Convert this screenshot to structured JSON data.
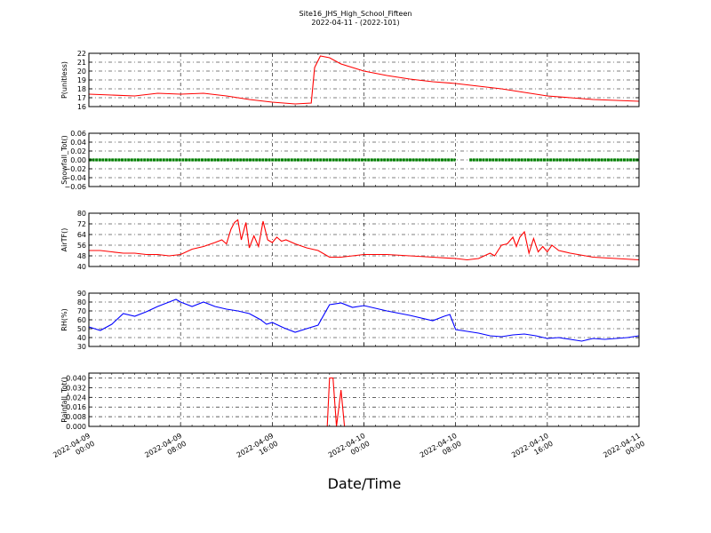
{
  "figure": {
    "title_line1": "Site16_JHS_High_School_Fifteen",
    "title_line2": "2022-04-11 - (2022-101)",
    "xlabel": "Date/Time"
  },
  "chart_data": [
    {
      "type": "line",
      "ylabel": "P(unitless)",
      "ylim": [
        16,
        22
      ],
      "yticks": [
        16,
        17,
        18,
        19,
        20,
        21,
        22
      ],
      "ytick_labels": [
        "16",
        "17",
        "18",
        "19",
        "20",
        "21",
        "22"
      ],
      "color": "#ff0000",
      "marker": "line",
      "grid": true,
      "x_hours": [
        0,
        2,
        4,
        6,
        8,
        10,
        12,
        14,
        16,
        18,
        19.4,
        19.7,
        20.2,
        21,
        22,
        24,
        26,
        28,
        30,
        32,
        34,
        36,
        38,
        40,
        42,
        44,
        46,
        48
      ],
      "y": [
        17.4,
        17.3,
        17.2,
        17.5,
        17.4,
        17.5,
        17.2,
        16.8,
        16.5,
        16.3,
        16.4,
        20.4,
        21.7,
        21.5,
        20.8,
        20.0,
        19.5,
        19.1,
        18.8,
        18.6,
        18.3,
        18.0,
        17.6,
        17.2,
        17.0,
        16.8,
        16.7,
        16.6
      ]
    },
    {
      "type": "scatter",
      "ylabel": "Snowfall_Tot()",
      "ylim": [
        -0.06,
        0.06
      ],
      "yticks": [
        -0.06,
        -0.04,
        -0.02,
        0.0,
        0.02,
        0.04,
        0.06
      ],
      "ytick_labels": [
        "−0.06",
        "−0.04",
        "−0.02",
        "0.00",
        "0.02",
        "0.04",
        "0.06"
      ],
      "color": "#007f00",
      "marker": "dots",
      "grid": true,
      "segments": [
        [
          0,
          32
        ],
        [
          33.2,
          48
        ]
      ],
      "value": 0.0
    },
    {
      "type": "line",
      "ylabel": "AirTF()",
      "ylim": [
        40,
        80
      ],
      "yticks": [
        40,
        48,
        56,
        64,
        72,
        80
      ],
      "ytick_labels": [
        "40",
        "48",
        "56",
        "64",
        "72",
        "80"
      ],
      "color": "#ff0000",
      "marker": "line",
      "grid": true,
      "x_hours": [
        0,
        1,
        2,
        3,
        4,
        5,
        6,
        7,
        8,
        9,
        10,
        11,
        11.6,
        12,
        12.4,
        12.7,
        13,
        13.3,
        13.7,
        14,
        14.4,
        14.8,
        15.2,
        15.6,
        16,
        16.4,
        16.8,
        17.2,
        18,
        19,
        20,
        21,
        22,
        24,
        26,
        28,
        30,
        32,
        33,
        34,
        35,
        35.4,
        36,
        36.5,
        37,
        37.3,
        37.6,
        38,
        38.4,
        38.8,
        39.2,
        39.6,
        40,
        40.4,
        41,
        42,
        44,
        46,
        48
      ],
      "y": [
        52,
        52,
        51,
        50,
        50,
        49,
        49,
        48,
        49,
        53,
        55,
        58,
        60,
        57,
        68,
        73,
        75,
        60,
        73,
        54,
        63,
        55,
        74,
        60,
        58,
        62,
        59,
        60,
        57,
        54,
        52,
        47,
        47,
        49,
        49,
        48,
        47,
        46,
        45,
        46,
        50,
        48,
        56,
        57,
        62,
        55,
        62,
        66,
        50,
        61,
        51,
        55,
        51,
        56,
        52,
        50,
        47,
        46,
        45
      ]
    },
    {
      "type": "line",
      "ylabel": "RH(%)",
      "ylim": [
        30,
        90
      ],
      "yticks": [
        30,
        40,
        50,
        60,
        70,
        80,
        90
      ],
      "ytick_labels": [
        "30",
        "40",
        "50",
        "60",
        "70",
        "80",
        "90"
      ],
      "color": "#0000ff",
      "marker": "line",
      "grid": true,
      "x_hours": [
        0,
        1,
        2,
        3,
        4,
        5,
        6,
        7,
        7.6,
        8,
        9,
        10,
        11,
        12,
        13,
        14,
        15,
        15.5,
        16,
        17,
        18,
        19,
        20,
        21,
        22,
        23,
        24,
        26,
        28,
        30,
        31,
        31.5,
        32,
        33,
        34,
        35,
        36,
        37,
        38,
        39,
        40,
        41,
        42,
        43,
        44,
        45,
        46,
        47,
        48
      ],
      "y": [
        52,
        48,
        55,
        67,
        64,
        69,
        75,
        80,
        83,
        80,
        75,
        80,
        75,
        72,
        70,
        67,
        60,
        55,
        57,
        51,
        46,
        50,
        54,
        77,
        79,
        74,
        76,
        70,
        65,
        59,
        64,
        66,
        49,
        47,
        45,
        42,
        41,
        43,
        44,
        42,
        39,
        40,
        38,
        36,
        39,
        38,
        39,
        40,
        42
      ]
    },
    {
      "type": "line",
      "ylabel": "Rainfall_Tot()",
      "ylim": [
        0.0,
        0.044
      ],
      "yticks": [
        0.0,
        0.008,
        0.016,
        0.024,
        0.032,
        0.04
      ],
      "ytick_labels": [
        "0.000",
        "0.008",
        "0.016",
        "0.024",
        "0.032",
        "0.040"
      ],
      "color": "#ff0000",
      "marker": "line",
      "grid": true,
      "x_hours": [
        0,
        20.8,
        21.0,
        21.3,
        21.6,
        22.0,
        22.3,
        48
      ],
      "y": [
        0,
        0,
        0.04,
        0.04,
        0.0,
        0.03,
        0.0,
        0
      ]
    }
  ],
  "x_axis": {
    "range_hours": [
      0,
      48
    ],
    "ticks_hours": [
      0,
      8,
      16,
      24,
      32,
      40,
      48
    ],
    "tick_labels": [
      [
        "2022-04-09",
        "00:00"
      ],
      [
        "2022-04-09",
        "08:00"
      ],
      [
        "2022-04-09",
        "16:00"
      ],
      [
        "2022-04-10",
        "00:00"
      ],
      [
        "2022-04-10",
        "08:00"
      ],
      [
        "2022-04-10",
        "16:00"
      ],
      [
        "2022-04-11",
        "00:00"
      ]
    ]
  }
}
